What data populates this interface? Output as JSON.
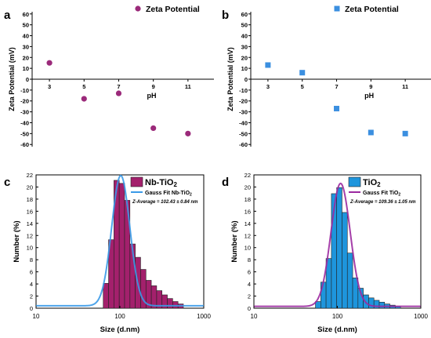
{
  "chart_data": [
    {
      "panel": "a",
      "type": "scatter",
      "xlabel": "pH",
      "ylabel": "Zeta Potential (mV)",
      "xlim": [
        2,
        12.5
      ],
      "ylim": [
        -62,
        62
      ],
      "xticks": [
        "3",
        "5",
        "7",
        "9",
        "11"
      ],
      "yticks": [
        "60",
        "50",
        "40",
        "30",
        "20",
        "10",
        "0",
        "-10",
        "-20",
        "-30",
        "-40",
        "-50",
        "-60"
      ],
      "legend": [
        "Zeta Potential"
      ],
      "legend_position": "top-right",
      "marker_color": "#9b2a7a",
      "series": [
        {
          "name": "Zeta Potential",
          "x": [
            3,
            5,
            7,
            9,
            11
          ],
          "y": [
            15,
            -18,
            -13,
            -45,
            -50
          ]
        }
      ]
    },
    {
      "panel": "b",
      "type": "scatter",
      "xlabel": "pH",
      "ylabel": "Zeta Potential (mV)",
      "xlim": [
        2,
        12.5
      ],
      "ylim": [
        -62,
        62
      ],
      "xticks": [
        "3",
        "5",
        "7",
        "9",
        "11"
      ],
      "yticks": [
        "60",
        "50",
        "40",
        "30",
        "20",
        "10",
        "0",
        "-10",
        "-20",
        "-30",
        "-40",
        "-50",
        "-60"
      ],
      "legend": [
        "Zeta Potential"
      ],
      "legend_position": "top-right",
      "marker_color": "#3b8fe0",
      "series": [
        {
          "name": "Zeta Potential",
          "x": [
            3,
            5,
            7,
            9,
            11
          ],
          "y": [
            13,
            6,
            -27,
            -49,
            -50
          ]
        }
      ]
    },
    {
      "panel": "c",
      "type": "bar",
      "xscale": "log",
      "xlabel": "Size (d.nm)",
      "ylabel": "Number (%)",
      "xlim": [
        10,
        1000
      ],
      "ylim": [
        0,
        22
      ],
      "xticks": [
        "10",
        "100",
        "1000"
      ],
      "yticks": [
        "0",
        "2",
        "4",
        "6",
        "8",
        "10",
        "12",
        "14",
        "16",
        "18",
        "20",
        "22"
      ],
      "legend_sample": "Nb-TiO",
      "legend_sample_sub": "2",
      "legend_fit": "Gauss Fit Nb-TiO",
      "legend_fit_sub": "2",
      "annotation": "Z-Average = 102.43 ± 0.84 nm",
      "bar_color": "#a3206c",
      "fit_color": "#3a9ae8",
      "x": [
        68.1,
        78.8,
        91.3,
        105.7,
        122.4,
        141.8,
        164.2,
        190.1,
        220.2,
        255.0,
        295.3,
        342.0,
        396.1,
        458.7,
        531.2
      ],
      "values": [
        4.1,
        11.3,
        21.1,
        20.6,
        17.8,
        10.6,
        8.4,
        6.4,
        4.6,
        3.7,
        2.9,
        2.2,
        1.6,
        1.1,
        0.7
      ],
      "fit": {
        "center": 102.43,
        "sigma_log10": 0.108,
        "amplitude": 21.5,
        "baseline": 0.4
      }
    },
    {
      "panel": "d",
      "type": "bar",
      "xscale": "log",
      "xlabel": "Size (d.nm)",
      "ylabel": "Number (%)",
      "xlim": [
        10,
        1000
      ],
      "ylim": [
        0,
        22
      ],
      "xticks": [
        "10",
        "100",
        "1000"
      ],
      "yticks": [
        "0",
        "2",
        "4",
        "6",
        "8",
        "10",
        "12",
        "14",
        "16",
        "18",
        "20",
        "22"
      ],
      "legend_sample": "TiO",
      "legend_sample_sub": "2",
      "legend_fit": "Gauss Fit TiO",
      "legend_fit_sub": "2",
      "annotation": "Z-Average = 109.36 ± 1.05 nm",
      "bar_color": "#1e95dc",
      "fit_color": "#9b2aa0",
      "x": [
        58.8,
        68.1,
        78.8,
        91.3,
        105.7,
        122.4,
        141.8,
        164.2,
        190.1,
        220.2,
        255.0,
        295.3,
        342.0,
        396.1,
        458.7,
        531.2
      ],
      "values": [
        1.1,
        4.3,
        8.2,
        18.9,
        19.9,
        15.8,
        9.1,
        5.0,
        3.3,
        2.2,
        1.7,
        1.3,
        1.0,
        0.7,
        0.5,
        0.3
      ],
      "fit": {
        "center": 109.36,
        "sigma_log10": 0.115,
        "amplitude": 20.3,
        "baseline": 0.3
      }
    }
  ],
  "labels": {
    "panel_a": "a",
    "panel_b": "b",
    "panel_c": "c",
    "panel_d": "d"
  }
}
